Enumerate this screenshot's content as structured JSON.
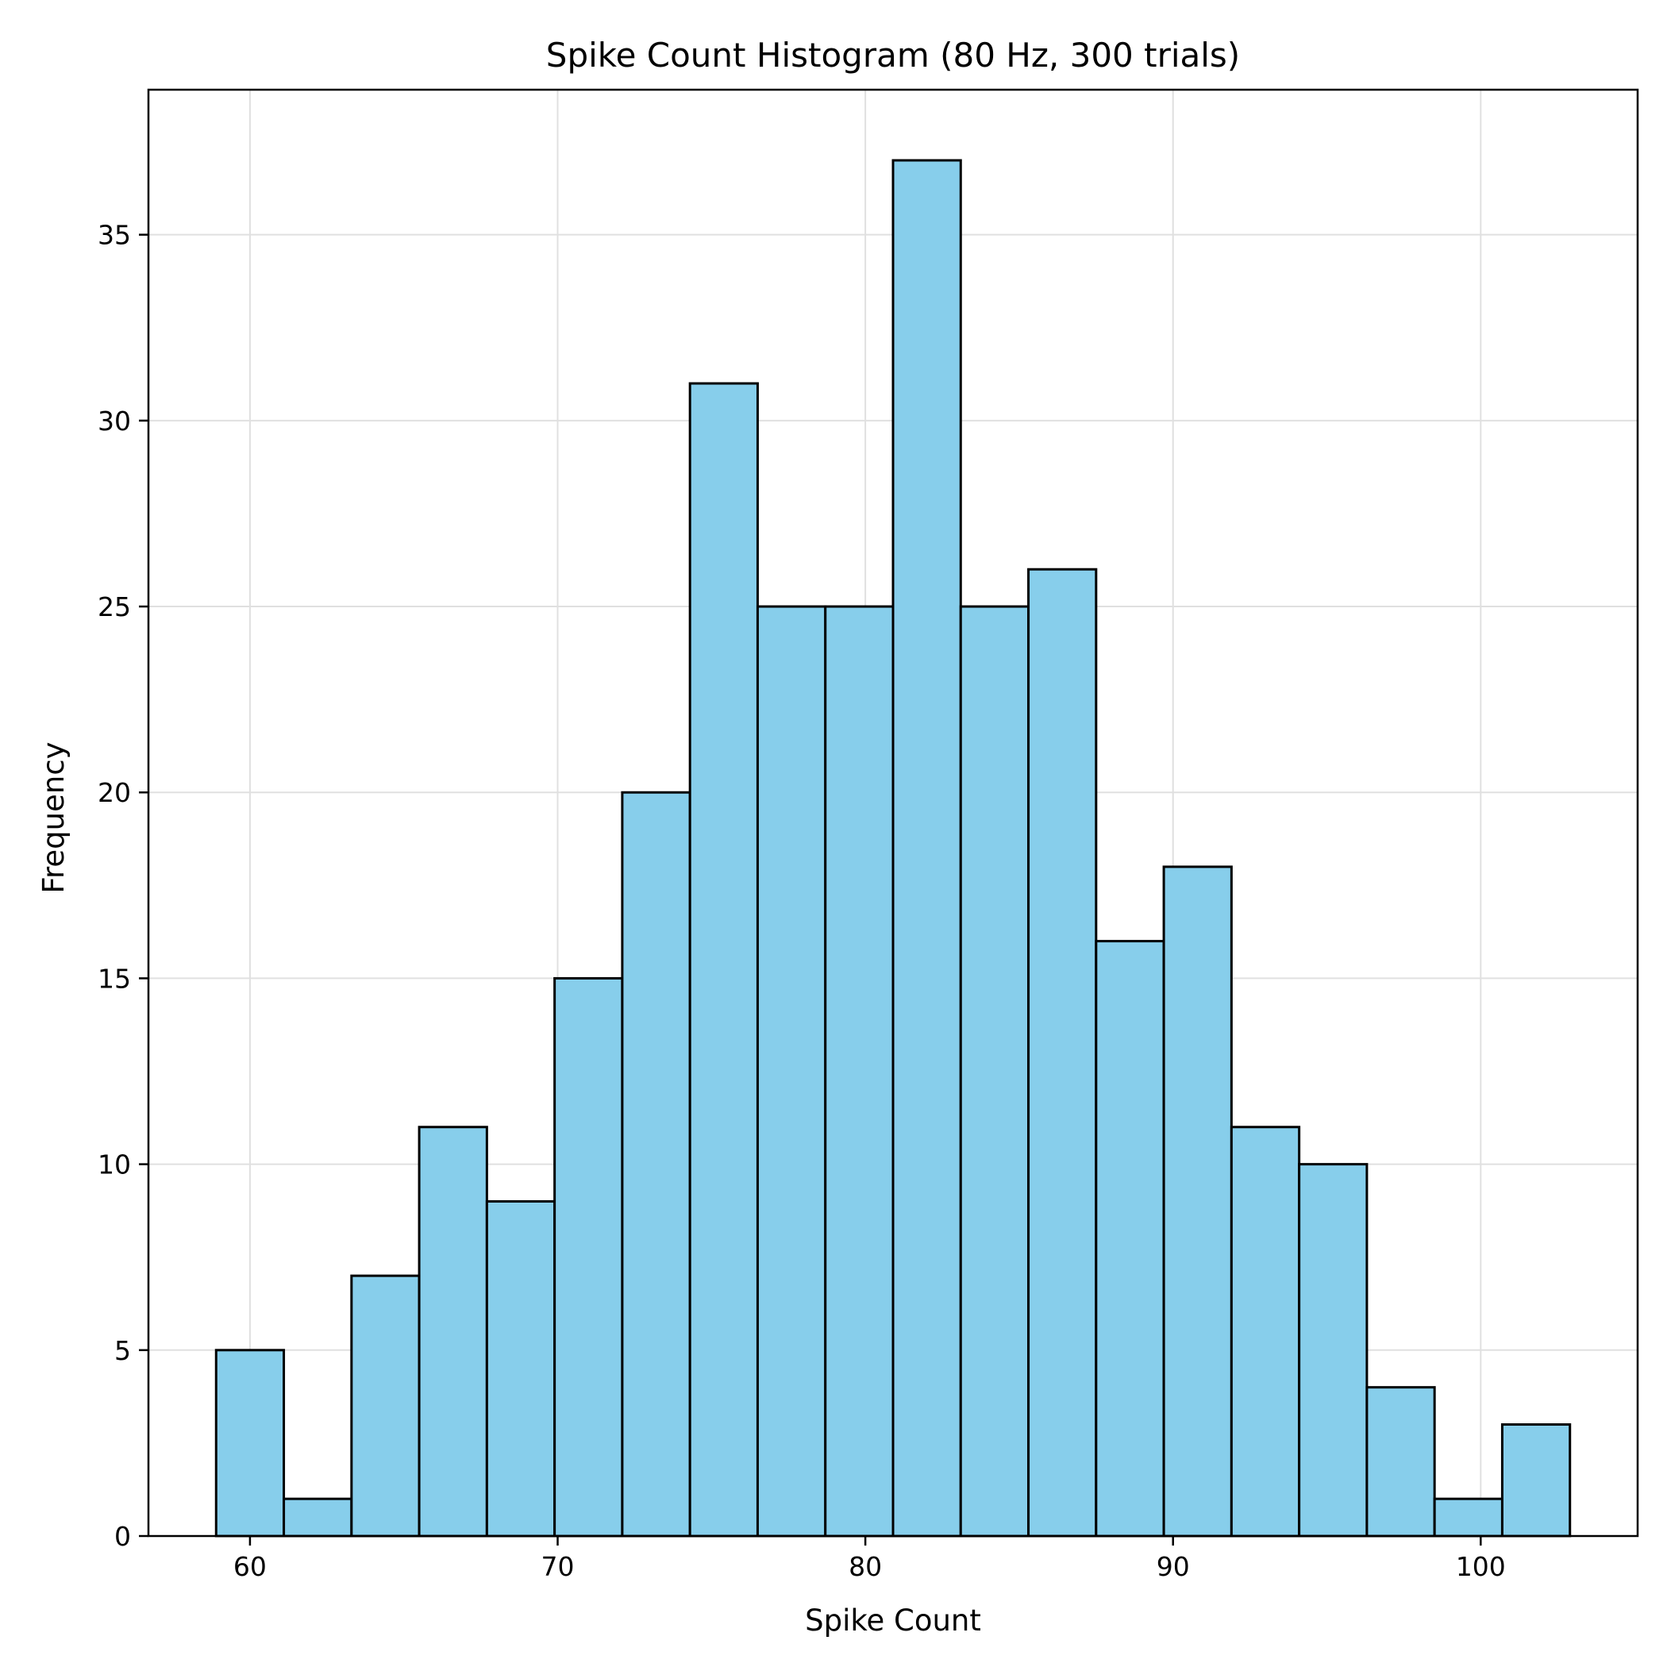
{
  "chart_data": {
    "type": "bar",
    "title": "Spike Count Histogram (80 Hz, 300 trials)",
    "xlabel": "Spike Count",
    "ylabel": "Frequency",
    "bin_edges": [
      58.9,
      61.1,
      63.3,
      65.5,
      67.7,
      69.9,
      72.1,
      74.3,
      76.5,
      78.7,
      80.9,
      83.1,
      85.3,
      87.5,
      89.7,
      91.9,
      94.1,
      96.3,
      98.5,
      100.7,
      102.9
    ],
    "values": [
      5,
      1,
      7,
      11,
      9,
      15,
      20,
      31,
      25,
      25,
      37,
      25,
      26,
      16,
      18,
      11,
      10,
      4,
      1,
      3
    ],
    "xlim": [
      56.7,
      105.1
    ],
    "ylim": [
      0,
      38.9
    ],
    "xticks": [
      60,
      70,
      80,
      90,
      100
    ],
    "yticks": [
      0,
      5,
      10,
      15,
      20,
      25,
      30,
      35
    ],
    "grid": true,
    "colors": {
      "bar_fill": "#87CEEB",
      "bar_edge": "#000000",
      "grid": "#e0e0e0"
    }
  }
}
